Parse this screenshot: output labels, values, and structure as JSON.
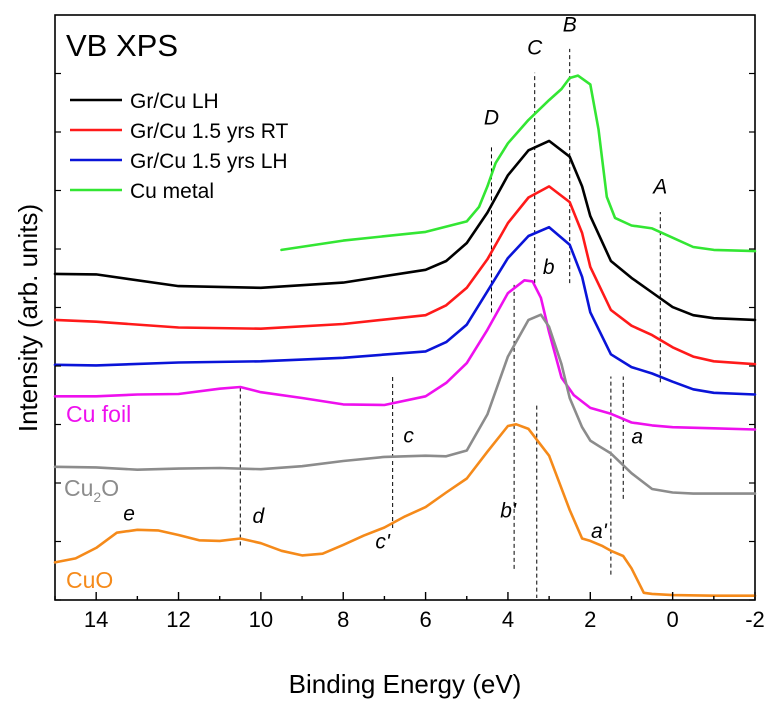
{
  "chart_data": {
    "type": "line",
    "title": "VB XPS",
    "xlabel": "Binding Energy (eV)",
    "ylabel": "Intensity (arb. units)",
    "x_reversed": true,
    "xlim": [
      15,
      -2
    ],
    "ylim": [
      0,
      100
    ],
    "x_ticks": [
      14,
      12,
      10,
      8,
      6,
      4,
      2,
      0,
      -2
    ],
    "x_tick_labels": [
      "14",
      "12",
      "10",
      "8",
      "6",
      "4",
      "2",
      "0",
      "-2"
    ],
    "y_ticks_labeled": false,
    "grid": false,
    "legend_position": "top-left",
    "legend": [
      {
        "name": "Gr/Cu LH",
        "color": "#000000"
      },
      {
        "name": "Gr/Cu 1.5 yrs RT",
        "color": "#ff1a1a"
      },
      {
        "name": "Gr/Cu 1.5 yrs LH",
        "color": "#0a14d8"
      },
      {
        "name": "Cu metal",
        "color": "#33e633"
      }
    ],
    "series": [
      {
        "name": "Cu metal",
        "color": "#33e633",
        "x": [
          9.5,
          8,
          6,
          5,
          4.7,
          4.5,
          4.3,
          4.0,
          3.5,
          3.0,
          2.7,
          2.5,
          2.3,
          2.0,
          1.8,
          1.6,
          1.4,
          1.0,
          0.5,
          0.0,
          -0.5,
          -1.0,
          -2.0
        ],
        "values": [
          59.7,
          61.3,
          62.8,
          64.6,
          67.1,
          70.6,
          74.6,
          78.0,
          82.0,
          85.4,
          87.3,
          89.2,
          89.6,
          88.1,
          80.4,
          68.8,
          65.2,
          63.9,
          63.4,
          61.8,
          60.2,
          59.7,
          59.5
        ]
      },
      {
        "name": "Gr/Cu LH",
        "color": "#000000",
        "x": [
          15,
          14,
          12,
          10,
          8,
          6,
          5.5,
          5.0,
          4.5,
          4.0,
          3.5,
          3.0,
          2.5,
          2.2,
          2.0,
          1.5,
          1.0,
          0.5,
          0.0,
          -0.5,
          -1,
          -2
        ],
        "values": [
          55.6,
          55.5,
          53.5,
          53.2,
          54.1,
          56.3,
          57.8,
          60.9,
          66.1,
          72.5,
          76.8,
          78.4,
          75.7,
          70.6,
          65.5,
          57.8,
          54.9,
          52.4,
          49.9,
          48.5,
          48.0,
          47.7
        ]
      },
      {
        "name": "Gr/Cu 1.5 yrs RT",
        "color": "#ff1a1a",
        "x": [
          15,
          14,
          12,
          10,
          8,
          6,
          5.5,
          5.0,
          4.5,
          4.0,
          3.5,
          3.0,
          2.5,
          2.2,
          2.0,
          1.5,
          1.0,
          0.5,
          0.0,
          -0.5,
          -1,
          -2
        ],
        "values": [
          47.7,
          47.4,
          46.4,
          46.2,
          47.0,
          48.5,
          50.2,
          53.2,
          58.1,
          64.3,
          68.7,
          70.6,
          67.9,
          62.6,
          56.8,
          49.4,
          46.7,
          45.1,
          43.0,
          41.4,
          40.6,
          40.1
        ]
      },
      {
        "name": "Gr/Cu 1.5 yrs LH",
        "color": "#0a14d8",
        "x": [
          15,
          14,
          12,
          10,
          8,
          6,
          5.5,
          5.0,
          4.5,
          4.0,
          3.5,
          3.0,
          2.5,
          2.2,
          2.0,
          1.5,
          1.0,
          0.5,
          0.0,
          -0.5,
          -1,
          -2
        ],
        "values": [
          40.0,
          39.9,
          40.4,
          40.6,
          41.2,
          42.3,
          43.9,
          46.9,
          52.6,
          58.3,
          62.1,
          63.6,
          60.6,
          55.1,
          49.0,
          41.8,
          39.6,
          38.5,
          37.1,
          35.8,
          35.2,
          34.9
        ]
      },
      {
        "name": "Cu foil",
        "color": "#ee10ee",
        "x": [
          15,
          14,
          13,
          12,
          11,
          10.5,
          10,
          9,
          8,
          7,
          6,
          5.5,
          5,
          4.5,
          4.0,
          3.6,
          3.4,
          3.2,
          3.0,
          2.7,
          2.4,
          2.0,
          1.5,
          1.0,
          0.5,
          0,
          -1,
          -2
        ],
        "values": [
          34.6,
          34.6,
          34.9,
          35.0,
          35.9,
          36.2,
          35.3,
          34.3,
          33.2,
          33.1,
          34.6,
          36.9,
          40.3,
          46.0,
          52.3,
          54.5,
          54.3,
          51.5,
          45.6,
          37.8,
          34.8,
          32.6,
          31.6,
          30.1,
          29.6,
          29.3,
          29.1,
          28.9
        ]
      },
      {
        "name": "Cu₂O",
        "color": "#8c8c8c",
        "x": [
          15,
          14,
          13,
          12,
          11,
          10,
          9,
          8,
          7,
          6,
          5.5,
          5.0,
          4.5,
          4.0,
          3.5,
          3.2,
          3.0,
          2.7,
          2.5,
          2.2,
          2.0,
          1.8,
          1.5,
          1.0,
          0.5,
          0.0,
          -0.5,
          -1,
          -2
        ],
        "values": [
          22.5,
          22.4,
          22.0,
          22.2,
          22.3,
          22.1,
          22.6,
          23.5,
          24.2,
          24.4,
          24.3,
          25.3,
          31.5,
          41.4,
          47.7,
          48.6,
          46.5,
          40.1,
          34.3,
          29.3,
          27.0,
          26.1,
          24.8,
          21.4,
          18.7,
          18.1,
          17.9,
          17.9,
          17.9
        ]
      },
      {
        "name": "CuO",
        "color": "#f58a1a",
        "x": [
          15,
          14.5,
          14,
          13.5,
          13,
          12.5,
          12,
          11.5,
          11,
          10.5,
          10,
          9.5,
          9,
          8.5,
          8,
          7.5,
          7,
          6.5,
          6,
          5.5,
          5.0,
          4.5,
          4.0,
          3.8,
          3.5,
          3.0,
          2.5,
          2.2,
          2.0,
          1.7,
          1.5,
          1.2,
          1.0,
          0.7,
          0.5,
          0.0,
          -1,
          -2
        ],
        "values": [
          6.1,
          6.8,
          8.6,
          11.2,
          11.7,
          11.6,
          10.8,
          9.9,
          9.8,
          10.2,
          9.4,
          8.1,
          7.3,
          7.6,
          9.1,
          10.7,
          12.1,
          14.0,
          15.6,
          18.1,
          20.5,
          25.1,
          29.5,
          29.8,
          29.0,
          24.4,
          15.1,
          10.2,
          9.8,
          8.9,
          8.1,
          7.2,
          5.1,
          0.9,
          0.7,
          0.5,
          0.4,
          0.4
        ]
      }
    ],
    "curve_labels": [
      {
        "text": "Cu foil",
        "color": "#ee10ee"
      },
      {
        "text_main": "Cu",
        "text_sub": "2",
        "text_tail": "O",
        "color": "#8c8c8c"
      },
      {
        "text": "CuO",
        "color": "#f58a1a"
      }
    ],
    "annotations": [
      {
        "label": "A",
        "x": 0.3,
        "y_from": 37,
        "y_to": 66.2,
        "label_y": 69.4
      },
      {
        "label": "B",
        "x": 2.5,
        "y_from": 54,
        "y_to": 94.2,
        "label_y": 97.2
      },
      {
        "label": "C",
        "x": 3.35,
        "y_from": 54,
        "y_to": 90.1,
        "label_y": 93.2
      },
      {
        "label": "D",
        "x": 4.4,
        "y_from": 49,
        "y_to": 77.6,
        "label_y": 81.2
      },
      {
        "label": "b",
        "x": 3.3,
        "y_from": 33,
        "y_to": 0,
        "label_y": 55.6
      },
      {
        "label": "b'",
        "x": 3.85,
        "y_from": 5,
        "y_to": 54.2,
        "label_y": 13.8
      },
      {
        "label": "a",
        "x": 1.2,
        "y_from": 17,
        "y_to": 38,
        "label_y": 26.5
      },
      {
        "label": "a'",
        "x": 1.5,
        "y_from": 4,
        "y_to": 38,
        "label_y": 10.3
      },
      {
        "label": "c",
        "x": 6.8,
        "y_from": 12,
        "y_to": 38,
        "label_y": 26.7
      },
      {
        "label": "c'",
        "x": 6.8,
        "y_from": 0,
        "y_to": 0,
        "label_y": 8.5
      },
      {
        "label": "d",
        "x": 10.5,
        "y_from": 9,
        "y_to": 36.5,
        "label_y": 12.9
      },
      {
        "label": "e",
        "x": 13.2,
        "y_from": 0,
        "y_to": 0,
        "label_y": 13.3
      }
    ]
  }
}
